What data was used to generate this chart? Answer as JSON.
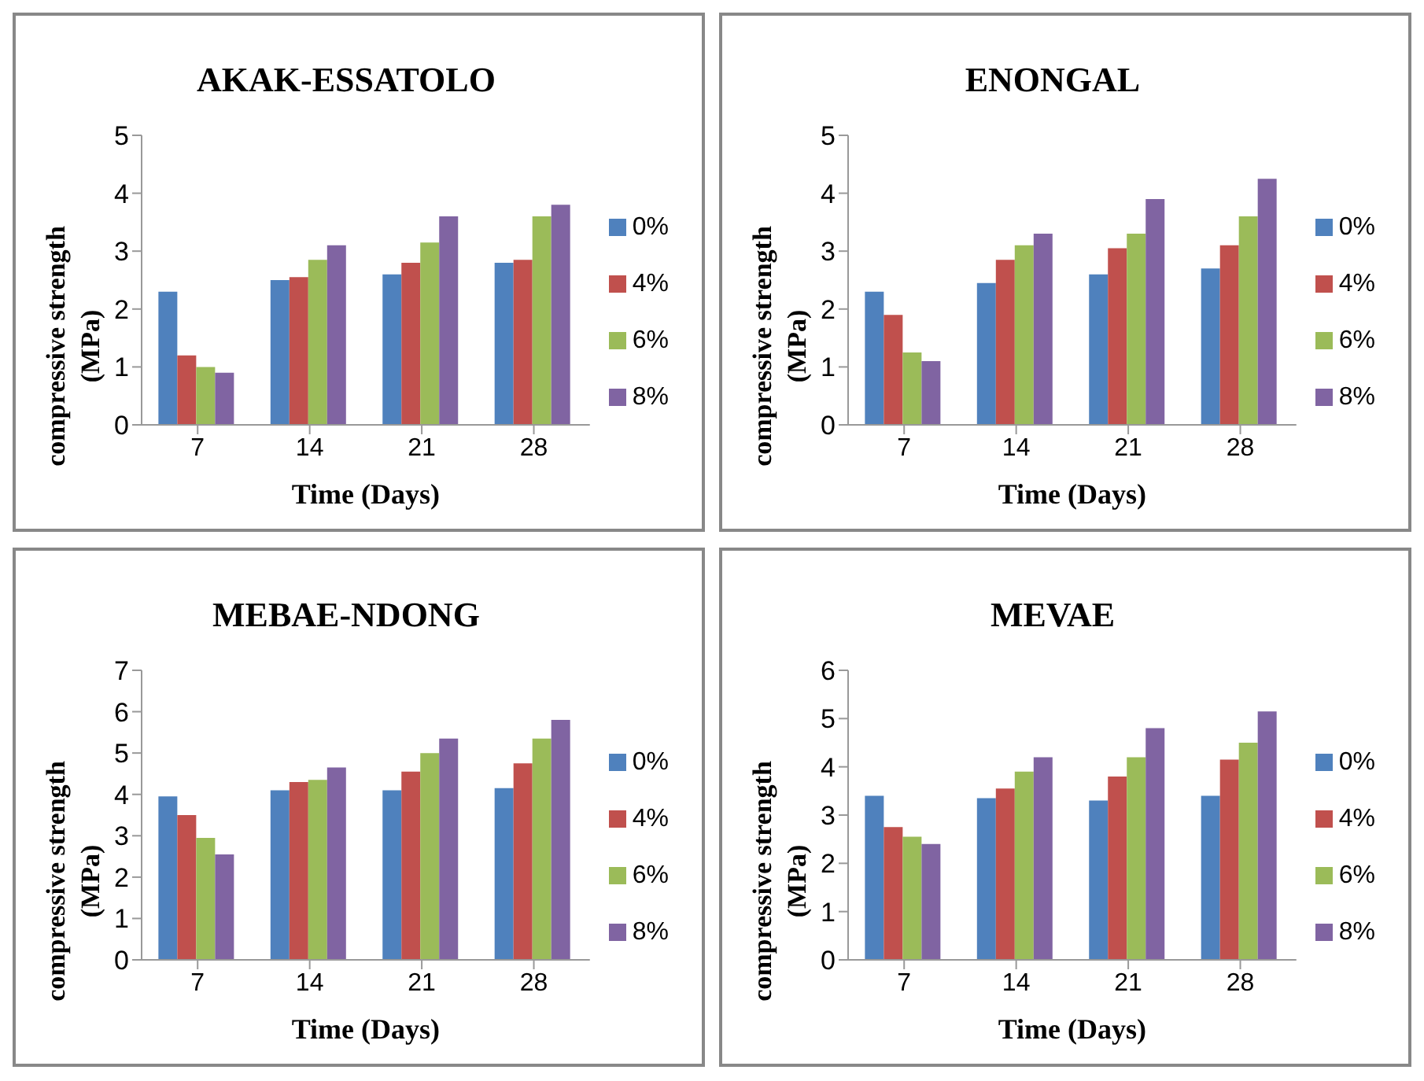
{
  "chart_data": [
    {
      "type": "bar",
      "title": "AKAK-ESSATOLO",
      "xlabel": "Time (Days)",
      "ylabel": "compressive strength (MPa)",
      "categories": [
        "7",
        "14",
        "21",
        "28"
      ],
      "ylim": [
        0,
        5
      ],
      "yticks": [
        0,
        1,
        2,
        3,
        4,
        5
      ],
      "legend": "right",
      "grid": false,
      "series": [
        {
          "name": "0%",
          "color": "#4f81bd",
          "values": [
            2.3,
            2.5,
            2.6,
            2.8
          ]
        },
        {
          "name": "4%",
          "color": "#c0504d",
          "values": [
            1.2,
            2.55,
            2.8,
            2.85
          ]
        },
        {
          "name": "6%",
          "color": "#9bbb59",
          "values": [
            1.0,
            2.85,
            3.15,
            3.6
          ]
        },
        {
          "name": "8%",
          "color": "#8064a2",
          "values": [
            0.9,
            3.1,
            3.6,
            3.8
          ]
        }
      ]
    },
    {
      "type": "bar",
      "title": "ENONGAL",
      "xlabel": "Time (Days)",
      "ylabel": "compressive strength (MPa)",
      "categories": [
        "7",
        "14",
        "21",
        "28"
      ],
      "ylim": [
        0,
        5
      ],
      "yticks": [
        0,
        1,
        2,
        3,
        4,
        5
      ],
      "legend": "right",
      "grid": false,
      "series": [
        {
          "name": "0%",
          "color": "#4f81bd",
          "values": [
            2.3,
            2.45,
            2.6,
            2.7
          ]
        },
        {
          "name": "4%",
          "color": "#c0504d",
          "values": [
            1.9,
            2.85,
            3.05,
            3.1
          ]
        },
        {
          "name": "6%",
          "color": "#9bbb59",
          "values": [
            1.25,
            3.1,
            3.3,
            3.6
          ]
        },
        {
          "name": "8%",
          "color": "#8064a2",
          "values": [
            1.1,
            3.3,
            3.9,
            4.25
          ]
        }
      ]
    },
    {
      "type": "bar",
      "title": "MEBAE-NDONG",
      "xlabel": "Time (Days)",
      "ylabel": "compressive strength (MPa)",
      "categories": [
        "7",
        "14",
        "21",
        "28"
      ],
      "ylim": [
        0,
        7
      ],
      "yticks": [
        0,
        1,
        2,
        3,
        4,
        5,
        6,
        7
      ],
      "legend": "right",
      "grid": false,
      "series": [
        {
          "name": "0%",
          "color": "#4f81bd",
          "values": [
            3.95,
            4.1,
            4.1,
            4.15
          ]
        },
        {
          "name": "4%",
          "color": "#c0504d",
          "values": [
            3.5,
            4.3,
            4.55,
            4.75
          ]
        },
        {
          "name": "6%",
          "color": "#9bbb59",
          "values": [
            2.95,
            4.35,
            5.0,
            5.35
          ]
        },
        {
          "name": "8%",
          "color": "#8064a2",
          "values": [
            2.55,
            4.65,
            5.35,
            5.8
          ]
        }
      ]
    },
    {
      "type": "bar",
      "title": "MEVAE",
      "xlabel": "Time (Days)",
      "ylabel": "compressive strength (MPa)",
      "categories": [
        "7",
        "14",
        "21",
        "28"
      ],
      "ylim": [
        0,
        6
      ],
      "yticks": [
        0,
        1,
        2,
        3,
        4,
        5,
        6
      ],
      "legend": "right",
      "grid": false,
      "series": [
        {
          "name": "0%",
          "color": "#4f81bd",
          "values": [
            3.4,
            3.35,
            3.3,
            3.4
          ]
        },
        {
          "name": "4%",
          "color": "#c0504d",
          "values": [
            2.75,
            3.55,
            3.8,
            4.15
          ]
        },
        {
          "name": "6%",
          "color": "#9bbb59",
          "values": [
            2.55,
            3.9,
            4.2,
            4.5
          ]
        },
        {
          "name": "8%",
          "color": "#8064a2",
          "values": [
            2.4,
            4.2,
            4.8,
            5.15
          ]
        }
      ]
    }
  ]
}
